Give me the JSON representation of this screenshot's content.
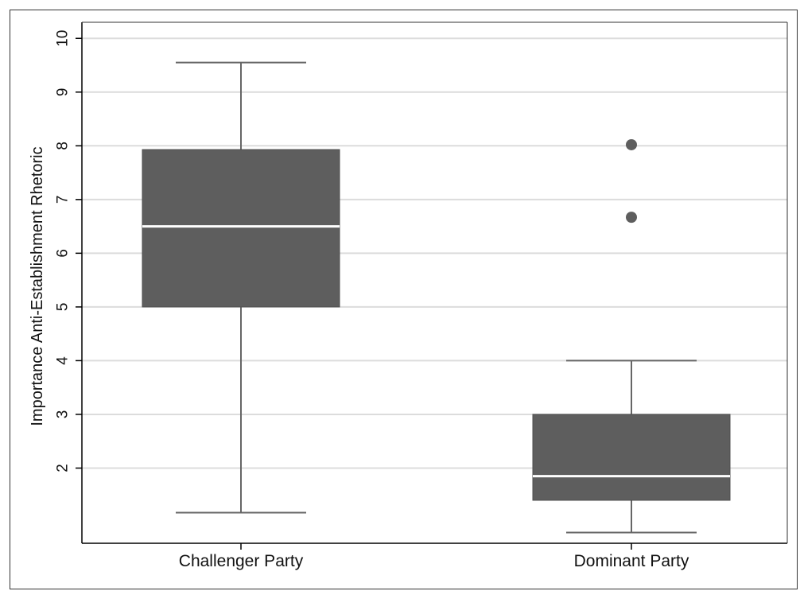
{
  "chart_data": {
    "type": "boxplot",
    "title": "",
    "xlabel": "",
    "ylabel": "Importance Anti-Establishment Rhetoric",
    "ylim": [
      0.6,
      10.3
    ],
    "yticks": [
      2,
      3,
      4,
      5,
      6,
      7,
      8,
      9,
      10
    ],
    "grid": true,
    "categories": [
      "Challenger Party",
      "Dominant Party"
    ],
    "boxes": [
      {
        "category": "Challenger Party",
        "whisker_low": 1.17,
        "q1": 5.0,
        "median": 6.5,
        "q3": 7.93,
        "whisker_high": 9.55,
        "outliers": []
      },
      {
        "category": "Dominant Party",
        "whisker_low": 0.8,
        "q1": 1.4,
        "median": 1.85,
        "q3": 3.0,
        "whisker_high": 4.0,
        "outliers": [
          6.67,
          8.02
        ]
      }
    ],
    "colors": {
      "box_fill": "#5e5e5e",
      "whisker": "#666666",
      "median_line": "#ffffff",
      "outlier": "#5e5e5e",
      "grid": "#dcdcdc",
      "axis": "#000000",
      "frame": "#333333"
    }
  }
}
